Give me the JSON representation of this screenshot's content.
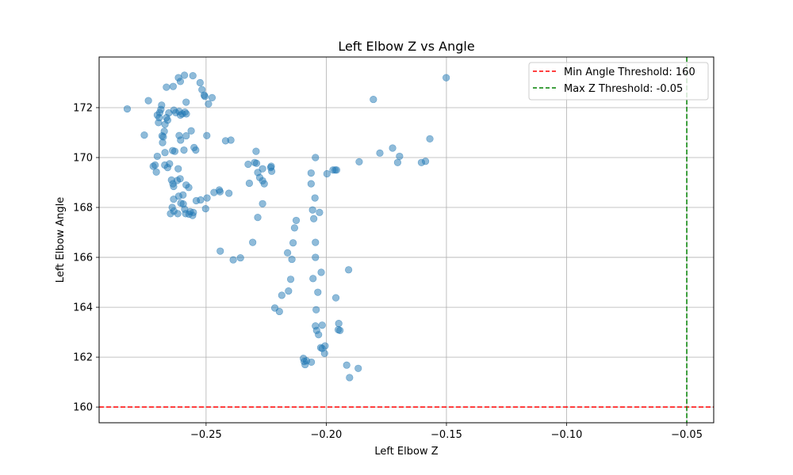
{
  "chart_data": {
    "type": "scatter",
    "title": "Left Elbow Z vs Angle",
    "xlabel": "Left Elbow Z",
    "ylabel": "Left Elbow Angle",
    "xlim": [
      -0.2945,
      -0.0388
    ],
    "ylim": [
      159.37,
      174.03
    ],
    "x_ticks": [
      -0.25,
      -0.2,
      -0.15,
      -0.1,
      -0.05
    ],
    "x_tick_labels": [
      "−0.25",
      "−0.20",
      "−0.15",
      "−0.10",
      "−0.05"
    ],
    "y_ticks": [
      160,
      162,
      164,
      166,
      168,
      170,
      172
    ],
    "y_tick_labels": [
      "160",
      "162",
      "164",
      "166",
      "168",
      "170",
      "172"
    ],
    "grid": true,
    "legend_position": "top-right",
    "point_color": "#1f77b4",
    "reference_lines": [
      {
        "orientation": "horizontal",
        "value": 160,
        "label": "Min Angle Threshold: 160",
        "color": "#ff0000",
        "style": "dashed"
      },
      {
        "orientation": "vertical",
        "value": -0.05,
        "label": "Max Z Threshold: -0.05",
        "color": "#008000",
        "style": "dashed"
      }
    ],
    "points": [
      [
        -0.2828,
        171.95
      ],
      [
        -0.274,
        172.28
      ],
      [
        -0.2757,
        170.9
      ],
      [
        -0.272,
        169.65
      ],
      [
        -0.2712,
        169.7
      ],
      [
        -0.2707,
        169.42
      ],
      [
        -0.2703,
        170.05
      ],
      [
        -0.2698,
        171.4
      ],
      [
        -0.2695,
        171.6
      ],
      [
        -0.2693,
        171.8
      ],
      [
        -0.2688,
        171.93
      ],
      [
        -0.2685,
        172.1
      ],
      [
        -0.2703,
        171.7
      ],
      [
        -0.2683,
        170.87
      ],
      [
        -0.2681,
        170.6
      ],
      [
        -0.2678,
        170.83
      ],
      [
        -0.2674,
        171.05
      ],
      [
        -0.2671,
        171.33
      ],
      [
        -0.2665,
        171.6
      ],
      [
        -0.266,
        171.5
      ],
      [
        -0.2655,
        171.79
      ],
      [
        -0.2672,
        169.7
      ],
      [
        -0.266,
        169.6
      ],
      [
        -0.2652,
        169.75
      ],
      [
        -0.2671,
        170.2
      ],
      [
        -0.2639,
        170.28
      ],
      [
        -0.263,
        170.25
      ],
      [
        -0.2665,
        172.82
      ],
      [
        -0.2637,
        172.85
      ],
      [
        -0.2634,
        171.9
      ],
      [
        -0.2626,
        171.8
      ],
      [
        -0.2612,
        171.85
      ],
      [
        -0.2607,
        171.7
      ],
      [
        -0.2599,
        171.75
      ],
      [
        -0.2588,
        171.82
      ],
      [
        -0.259,
        173.3
      ],
      [
        -0.2615,
        173.2
      ],
      [
        -0.2607,
        173.05
      ],
      [
        -0.2583,
        172.22
      ],
      [
        -0.2582,
        171.75
      ],
      [
        -0.2555,
        173.28
      ],
      [
        -0.2525,
        173.0
      ],
      [
        -0.2517,
        172.72
      ],
      [
        -0.2508,
        172.5
      ],
      [
        -0.2505,
        172.45
      ],
      [
        -0.249,
        172.15
      ],
      [
        -0.2475,
        172.4
      ],
      [
        -0.2612,
        170.88
      ],
      [
        -0.2606,
        170.7
      ],
      [
        -0.2583,
        170.87
      ],
      [
        -0.2562,
        171.07
      ],
      [
        -0.2592,
        170.3
      ],
      [
        -0.255,
        170.4
      ],
      [
        -0.2543,
        170.3
      ],
      [
        -0.2497,
        170.88
      ],
      [
        -0.2644,
        169.1
      ],
      [
        -0.2638,
        168.95
      ],
      [
        -0.2635,
        168.84
      ],
      [
        -0.262,
        169.08
      ],
      [
        -0.2616,
        169.55
      ],
      [
        -0.2608,
        169.15
      ],
      [
        -0.2583,
        168.9
      ],
      [
        -0.2572,
        168.8
      ],
      [
        -0.2635,
        168.33
      ],
      [
        -0.2614,
        168.45
      ],
      [
        -0.2596,
        168.5
      ],
      [
        -0.2605,
        168.17
      ],
      [
        -0.2595,
        168.14
      ],
      [
        -0.2589,
        167.93
      ],
      [
        -0.2641,
        168.0
      ],
      [
        -0.2634,
        167.85
      ],
      [
        -0.2648,
        167.75
      ],
      [
        -0.2618,
        167.75
      ],
      [
        -0.2585,
        167.75
      ],
      [
        -0.2571,
        167.73
      ],
      [
        -0.2556,
        167.68
      ],
      [
        -0.2553,
        167.8
      ],
      [
        -0.2566,
        167.83
      ],
      [
        -0.2541,
        168.27
      ],
      [
        -0.2523,
        168.3
      ],
      [
        -0.2496,
        168.38
      ],
      [
        -0.2502,
        167.95
      ],
      [
        -0.2467,
        168.6
      ],
      [
        -0.2445,
        168.7
      ],
      [
        -0.2442,
        168.63
      ],
      [
        -0.2419,
        170.67
      ],
      [
        -0.2397,
        170.7
      ],
      [
        -0.2405,
        168.57
      ],
      [
        -0.2441,
        166.25
      ],
      [
        -0.2387,
        165.9
      ],
      [
        -0.2357,
        165.98
      ],
      [
        -0.2325,
        169.73
      ],
      [
        -0.232,
        168.97
      ],
      [
        -0.2306,
        166.6
      ],
      [
        -0.2298,
        169.8
      ],
      [
        -0.2292,
        170.25
      ],
      [
        -0.229,
        169.77
      ],
      [
        -0.2285,
        169.4
      ],
      [
        -0.2277,
        169.2
      ],
      [
        -0.2265,
        169.07
      ],
      [
        -0.2265,
        169.55
      ],
      [
        -0.2258,
        168.95
      ],
      [
        -0.2265,
        168.15
      ],
      [
        -0.2285,
        167.6
      ],
      [
        -0.2231,
        169.6
      ],
      [
        -0.2227,
        169.45
      ],
      [
        -0.2229,
        169.65
      ],
      [
        -0.2214,
        163.97
      ],
      [
        -0.2195,
        163.83
      ],
      [
        -0.2185,
        164.48
      ],
      [
        -0.2161,
        166.18
      ],
      [
        -0.2157,
        164.65
      ],
      [
        -0.2148,
        165.12
      ],
      [
        -0.2143,
        165.92
      ],
      [
        -0.2138,
        166.58
      ],
      [
        -0.2132,
        167.18
      ],
      [
        -0.2125,
        167.48
      ],
      [
        -0.2095,
        161.95
      ],
      [
        -0.2092,
        161.83
      ],
      [
        -0.2088,
        161.7
      ],
      [
        -0.2082,
        161.85
      ],
      [
        -0.2062,
        161.8
      ],
      [
        -0.2063,
        169.38
      ],
      [
        -0.2063,
        168.95
      ],
      [
        -0.2057,
        167.9
      ],
      [
        -0.2052,
        167.55
      ],
      [
        -0.2047,
        168.38
      ],
      [
        -0.2045,
        170.0
      ],
      [
        -0.2055,
        165.15
      ],
      [
        -0.2045,
        166.0
      ],
      [
        -0.2045,
        166.6
      ],
      [
        -0.2042,
        163.9
      ],
      [
        -0.2045,
        163.25
      ],
      [
        -0.204,
        163.07
      ],
      [
        -0.2032,
        162.9
      ],
      [
        -0.2035,
        164.6
      ],
      [
        -0.2023,
        162.38
      ],
      [
        -0.2017,
        162.35
      ],
      [
        -0.2028,
        167.8
      ],
      [
        -0.2021,
        165.4
      ],
      [
        -0.2017,
        163.28
      ],
      [
        -0.2007,
        162.15
      ],
      [
        -0.2005,
        162.45
      ],
      [
        -0.1997,
        169.35
      ],
      [
        -0.1972,
        169.5
      ],
      [
        -0.1963,
        169.5
      ],
      [
        -0.1957,
        169.5
      ],
      [
        -0.196,
        164.38
      ],
      [
        -0.1948,
        163.35
      ],
      [
        -0.195,
        163.1
      ],
      [
        -0.1943,
        163.07
      ],
      [
        -0.1907,
        165.5
      ],
      [
        -0.1915,
        161.68
      ],
      [
        -0.1903,
        161.18
      ],
      [
        -0.1867,
        161.55
      ],
      [
        -0.1863,
        169.83
      ],
      [
        -0.1804,
        172.33
      ],
      [
        -0.1777,
        170.18
      ],
      [
        -0.1724,
        170.38
      ],
      [
        -0.1703,
        169.8
      ],
      [
        -0.1695,
        170.05
      ],
      [
        -0.1604,
        169.8
      ],
      [
        -0.1587,
        169.85
      ],
      [
        -0.1569,
        170.75
      ],
      [
        -0.1501,
        173.2
      ]
    ]
  }
}
